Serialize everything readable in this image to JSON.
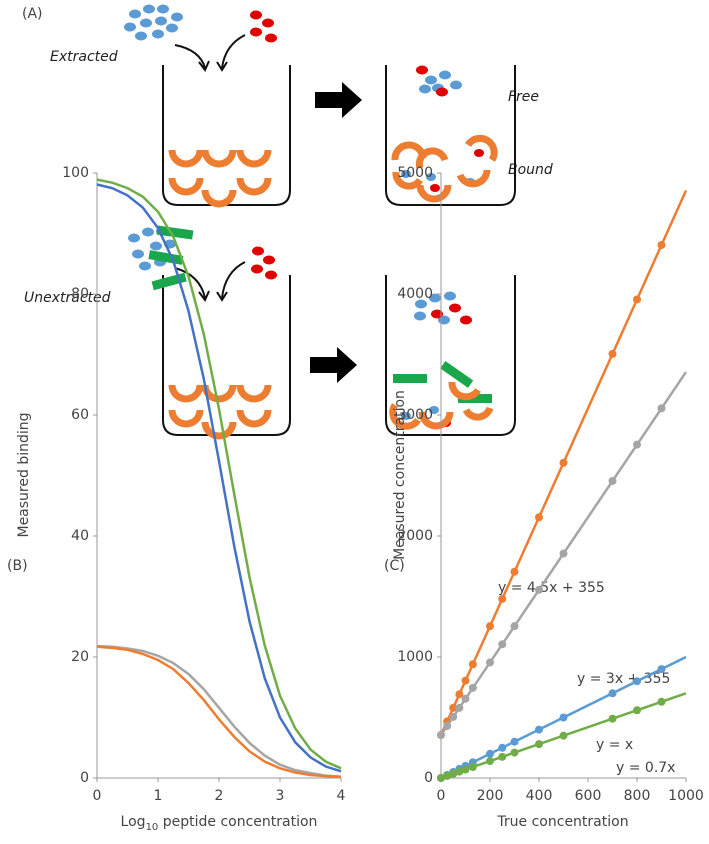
{
  "diagram": {
    "panel_label": "(A)",
    "extracted": "Extracted",
    "free": "Free",
    "bound": "Bound",
    "unextracted": "Unextracted"
  },
  "chart_data": [
    {
      "type": "line",
      "panel_label": "(B)",
      "y_label": "Measured binding",
      "x_label": [
        "Log",
        "10",
        " peptide concentration"
      ],
      "x": [
        0,
        0.25,
        0.5,
        0.75,
        1,
        1.25,
        1.5,
        1.75,
        2,
        2.25,
        2.5,
        2.75,
        3,
        3.25,
        3.5,
        3.75,
        4
      ],
      "xlim": [
        0,
        4
      ],
      "xticks": [
        0,
        1,
        2,
        3,
        4
      ],
      "ylim": [
        0,
        100
      ],
      "yticks": [
        0,
        20,
        40,
        60,
        80,
        100
      ],
      "grid": false,
      "series": [
        {
          "color": "#4472c4",
          "values": [
            98.1,
            97.5,
            96.3,
            94.3,
            90.9,
            85.5,
            77.2,
            66.0,
            52.4,
            38.3,
            25.9,
            16.5,
            10.0,
            5.9,
            3.4,
            1.9,
            1.1
          ]
        },
        {
          "color": "#70ad47",
          "values": [
            98.9,
            98.4,
            97.5,
            96.1,
            93.6,
            89.5,
            82.9,
            73.4,
            61.0,
            46.9,
            33.2,
            21.9,
            13.6,
            8.2,
            4.7,
            2.7,
            1.6
          ]
        },
        {
          "color": "#a5a5a5",
          "values": [
            21.8,
            21.7,
            21.4,
            21.0,
            20.2,
            19.0,
            17.2,
            14.7,
            11.6,
            8.5,
            5.8,
            3.7,
            2.2,
            1.3,
            0.8,
            0.4,
            0.2
          ]
        },
        {
          "color": "#ed7d31",
          "values": [
            21.7,
            21.5,
            21.2,
            20.5,
            19.5,
            18.0,
            15.7,
            12.9,
            9.7,
            6.8,
            4.4,
            2.7,
            1.6,
            0.9,
            0.5,
            0.3,
            0.2
          ]
        }
      ]
    },
    {
      "type": "scatter",
      "panel_label": "(C)",
      "y_label": "Measured concentration",
      "x_label": "True concentration",
      "x": [
        0,
        25,
        50,
        75,
        100,
        130,
        200,
        250,
        300,
        400,
        500,
        700,
        800,
        900
      ],
      "fit_x": [
        0,
        1000
      ],
      "xlim": [
        0,
        1000
      ],
      "xticks": [
        0,
        200,
        400,
        600,
        800,
        1000
      ],
      "ylim": [
        0,
        5000
      ],
      "yticks": [
        0,
        1000,
        2000,
        3000,
        4000,
        5000
      ],
      "grid": false,
      "series": [
        {
          "name": "y = 4.5x + 355",
          "color": "#ed7d31",
          "values": [
            355,
            467.5,
            580,
            692.5,
            805,
            940,
            1255,
            1480,
            1705,
            2155,
            2605,
            3505,
            3955,
            4405
          ],
          "fit": [
            355,
            4855
          ]
        },
        {
          "name": "y = 3x + 355",
          "color": "#a5a5a5",
          "values": [
            355,
            430,
            505,
            580,
            655,
            745,
            955,
            1105,
            1255,
            1555,
            1855,
            2455,
            2755,
            3055
          ],
          "fit": [
            355,
            3355
          ]
        },
        {
          "name": "y = x",
          "color": "#5b9bd5",
          "values": [
            0,
            25,
            50,
            75,
            100,
            130,
            200,
            250,
            300,
            400,
            500,
            700,
            800,
            900
          ],
          "fit": [
            0,
            1000
          ]
        },
        {
          "name": "y = 0.7x",
          "color": "#70ad47",
          "values": [
            0,
            17.5,
            35,
            52.5,
            70,
            91,
            140,
            175,
            210,
            280,
            350,
            490,
            560,
            630
          ],
          "fit": [
            0,
            700
          ]
        }
      ]
    }
  ]
}
